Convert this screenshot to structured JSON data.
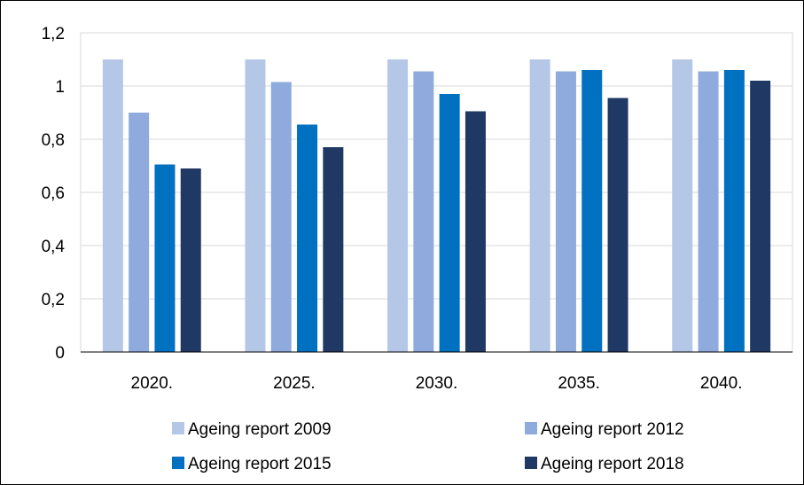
{
  "chart_data": {
    "type": "bar",
    "title": "",
    "xlabel": "",
    "ylabel": "",
    "categories": [
      "2020.",
      "2025.",
      "2030.",
      "2035.",
      "2040."
    ],
    "ylim": [
      0,
      1.2
    ],
    "yticks": [
      "0",
      "0,2",
      "0,4",
      "0,6",
      "0,8",
      "1",
      "1,2"
    ],
    "ytick_values": [
      0,
      0.2,
      0.4,
      0.6,
      0.8,
      1.0,
      1.2
    ],
    "grid": true,
    "legend_position": "bottom",
    "series": [
      {
        "name": "Ageing report 2009",
        "color": "#B4C7E7",
        "values": [
          1.1,
          1.1,
          1.1,
          1.1,
          1.1
        ]
      },
      {
        "name": "Ageing report 2012",
        "color": "#8FAADC",
        "values": [
          0.9,
          1.015,
          1.055,
          1.055,
          1.055
        ]
      },
      {
        "name": "Ageing report 2015",
        "color": "#0070C0",
        "values": [
          0.705,
          0.855,
          0.97,
          1.06,
          1.06
        ]
      },
      {
        "name": "Ageing report 2018",
        "color": "#203864",
        "values": [
          0.69,
          0.77,
          0.905,
          0.955,
          1.02
        ]
      }
    ]
  }
}
